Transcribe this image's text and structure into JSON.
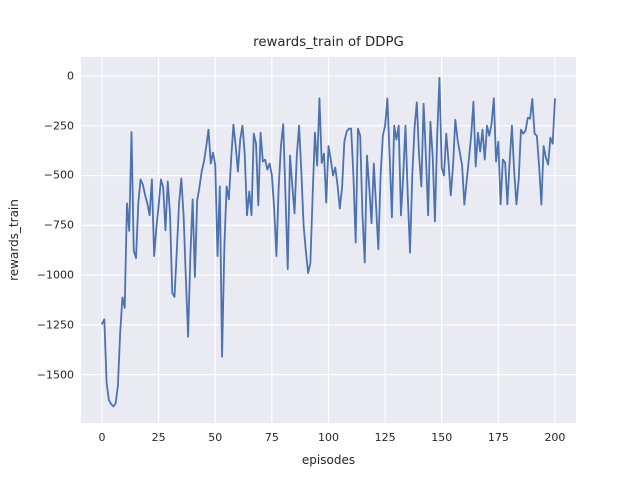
{
  "figure": {
    "background": "#ffffff",
    "text_color": "#262626"
  },
  "chart_data": {
    "type": "line",
    "title": "rewards_train of DDPG",
    "xlabel": "episodes",
    "ylabel": "rewards_train",
    "legend": false,
    "grid": true,
    "grid_color": "#ffffff",
    "plot_background": "#eaeaf2",
    "line_color": "#4c72b0",
    "x_ticks": [
      0,
      25,
      50,
      75,
      100,
      125,
      150,
      175,
      200
    ],
    "y_ticks": [
      0,
      -250,
      -500,
      -750,
      -1000,
      -1250,
      -1500
    ],
    "xlim": [
      -9.3,
      209.3
    ],
    "ylim": [
      -1743,
      95
    ],
    "x_start": 0,
    "x_step": 1,
    "series": [
      {
        "name": "rewards_train",
        "values": [
          -1245,
          -1222,
          -1540,
          -1628,
          -1648,
          -1660,
          -1645,
          -1555,
          -1290,
          -1112,
          -1165,
          -640,
          -778,
          -282,
          -878,
          -915,
          -640,
          -520,
          -545,
          -598,
          -640,
          -700,
          -520,
          -905,
          -760,
          -650,
          -520,
          -560,
          -775,
          -530,
          -690,
          -1090,
          -1110,
          -880,
          -640,
          -515,
          -700,
          -1015,
          -1310,
          -900,
          -620,
          -1010,
          -625,
          -560,
          -480,
          -430,
          -355,
          -270,
          -440,
          -385,
          -450,
          -905,
          -555,
          -1410,
          -860,
          -555,
          -620,
          -420,
          -245,
          -350,
          -480,
          -320,
          -250,
          -390,
          -700,
          -580,
          -700,
          -290,
          -340,
          -650,
          -285,
          -430,
          -420,
          -470,
          -440,
          -500,
          -666,
          -905,
          -560,
          -350,
          -242,
          -600,
          -970,
          -400,
          -550,
          -690,
          -400,
          -250,
          -480,
          -750,
          -880,
          -990,
          -940,
          -600,
          -285,
          -450,
          -112,
          -437,
          -390,
          -636,
          -352,
          -420,
          -500,
          -460,
          -550,
          -666,
          -560,
          -330,
          -280,
          -265,
          -265,
          -500,
          -837,
          -265,
          -300,
          -700,
          -937,
          -400,
          -560,
          -740,
          -440,
          -650,
          -870,
          -500,
          -300,
          -250,
          -113,
          -400,
          -710,
          -250,
          -320,
          -250,
          -700,
          -500,
          -250,
          -600,
          -887,
          -500,
          -260,
          -133,
          -400,
          -555,
          -140,
          -400,
          -700,
          -230,
          -400,
          -730,
          -300,
          -10,
          -460,
          -500,
          -290,
          -430,
          -600,
          -450,
          -220,
          -320,
          -385,
          -450,
          -646,
          -530,
          -417,
          -300,
          -130,
          -455,
          -285,
          -380,
          -270,
          -420,
          -250,
          -300,
          -240,
          -112,
          -430,
          -330,
          -645,
          -420,
          -435,
          -645,
          -430,
          -250,
          -480,
          -645,
          -520,
          -270,
          -290,
          -275,
          -210,
          -215,
          -116,
          -290,
          -300,
          -450,
          -646,
          -352,
          -410,
          -445,
          -310,
          -340,
          -116
        ]
      }
    ]
  }
}
